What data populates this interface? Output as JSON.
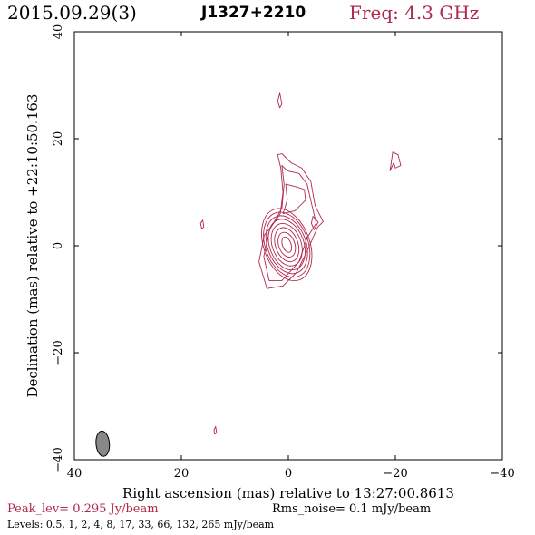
{
  "header": {
    "date": "2015.09.29(3)",
    "source": "J1327+2210",
    "freq": "Freq: 4.3 GHz"
  },
  "footer": {
    "peak": "Peak_lev=  0.295 Jy/beam",
    "rms": "Rms_noise=  0.1 mJy/beam",
    "levels": "Levels: 0.5,   1,   2,   4,   8,  17,  33,  66, 132, 265 mJy/beam"
  },
  "colors": {
    "contour": "#b0284a",
    "beam": "#888888",
    "accent": "#b0284a"
  },
  "chart_data": {
    "type": "contour",
    "title": "J1327+2210",
    "xlabel": "Right ascension (mas) relative to 13:27:00.8613",
    "ylabel": "Declination (mas) relative to +22:10:50.163",
    "xlim": [
      40,
      -40
    ],
    "ylim": [
      -40,
      40
    ],
    "xticks": [
      40,
      20,
      0,
      -20,
      -40
    ],
    "yticks": [
      -40,
      -20,
      0,
      20,
      40
    ],
    "xtick_labels": [
      "40",
      "20",
      "0",
      "−20",
      "−40"
    ],
    "ytick_labels": [
      "−40",
      "−20",
      "0",
      "20",
      "40"
    ],
    "peak_jy_per_beam": 0.295,
    "rms_mjy_per_beam": 0.1,
    "levels_mjy_per_beam": [
      0.5,
      1,
      2,
      4,
      8,
      17,
      33,
      66,
      132,
      265
    ],
    "core": {
      "x": 0.3,
      "y": 0.2,
      "tilt_deg": -20
    },
    "core_rings": [
      {
        "a": 0.8,
        "b": 1.5
      },
      {
        "a": 1.5,
        "b": 2.4
      },
      {
        "a": 2.1,
        "b": 3.3
      },
      {
        "a": 2.7,
        "b": 4.1
      },
      {
        "a": 3.2,
        "b": 4.9
      },
      {
        "a": 3.6,
        "b": 5.6
      },
      {
        "a": 4.0,
        "b": 6.3
      },
      {
        "a": 4.3,
        "b": 7.0
      }
    ],
    "jet_contours": [
      [
        [
          2.0,
          17.0
        ],
        [
          1.4,
          14.5
        ],
        [
          1.0,
          10.0
        ],
        [
          1.5,
          6.0
        ],
        [
          2.5,
          4.5
        ],
        [
          4.5,
          2.0
        ],
        [
          5.5,
          -3.0
        ],
        [
          4.0,
          -8.0
        ],
        [
          1.0,
          -7.5
        ],
        [
          -1.5,
          -5.0
        ],
        [
          -3.5,
          -1.0
        ],
        [
          -5.5,
          3.5
        ],
        [
          -6.5,
          4.5
        ],
        [
          -5.0,
          7.5
        ],
        [
          -4.2,
          12.0
        ],
        [
          -2.5,
          14.5
        ],
        [
          -0.5,
          15.5
        ],
        [
          1.2,
          17.2
        ],
        [
          2.0,
          17.0
        ]
      ],
      [
        [
          1.2,
          15.0
        ],
        [
          0.8,
          11.5
        ],
        [
          1.2,
          7.0
        ],
        [
          3.5,
          3.0
        ],
        [
          4.6,
          -2.0
        ],
        [
          3.6,
          -6.5
        ],
        [
          1.2,
          -6.5
        ],
        [
          -2.0,
          -3.0
        ],
        [
          -3.5,
          1.5
        ],
        [
          -5.2,
          4.2
        ],
        [
          -4.3,
          8.0
        ],
        [
          -3.5,
          11.5
        ],
        [
          -2.0,
          13.5
        ],
        [
          0.2,
          14.0
        ],
        [
          1.2,
          15.0
        ]
      ],
      [
        [
          0.5,
          11.5
        ],
        [
          0.2,
          8.5
        ],
        [
          1.0,
          6.0
        ],
        [
          -1.2,
          6.5
        ],
        [
          -3.2,
          8.5
        ],
        [
          -3.0,
          10.5
        ],
        [
          -1.5,
          11.0
        ],
        [
          0.5,
          11.5
        ]
      ],
      [
        [
          -4.6,
          5.5
        ],
        [
          -5.6,
          4.4
        ],
        [
          -4.8,
          3.0
        ],
        [
          -4.3,
          4.2
        ],
        [
          -4.6,
          5.5
        ]
      ]
    ],
    "islands": [
      [
        [
          1.6,
          28.5
        ],
        [
          1.2,
          26.5
        ],
        [
          1.6,
          25.8
        ],
        [
          2.0,
          27.0
        ],
        [
          1.6,
          28.5
        ]
      ],
      [
        [
          -19.5,
          17.5
        ],
        [
          -20.5,
          17.0
        ],
        [
          -21.0,
          15.0
        ],
        [
          -20.0,
          14.5
        ],
        [
          -19.7,
          15.5
        ],
        [
          -19.0,
          14.0
        ],
        [
          -19.5,
          17.5
        ]
      ],
      [
        [
          16.0,
          4.8
        ],
        [
          15.8,
          3.5
        ],
        [
          16.2,
          3.2
        ],
        [
          16.4,
          4.2
        ],
        [
          16.0,
          4.8
        ]
      ],
      [
        [
          13.6,
          -33.8
        ],
        [
          13.4,
          -35.0
        ],
        [
          13.8,
          -35.2
        ],
        [
          13.9,
          -34.4
        ],
        [
          13.6,
          -33.8
        ]
      ]
    ],
    "beam": {
      "x": 34.7,
      "y": -37.0,
      "major_mas": 4.5,
      "minor_mas": 2.0,
      "pa_deg": -5
    }
  }
}
